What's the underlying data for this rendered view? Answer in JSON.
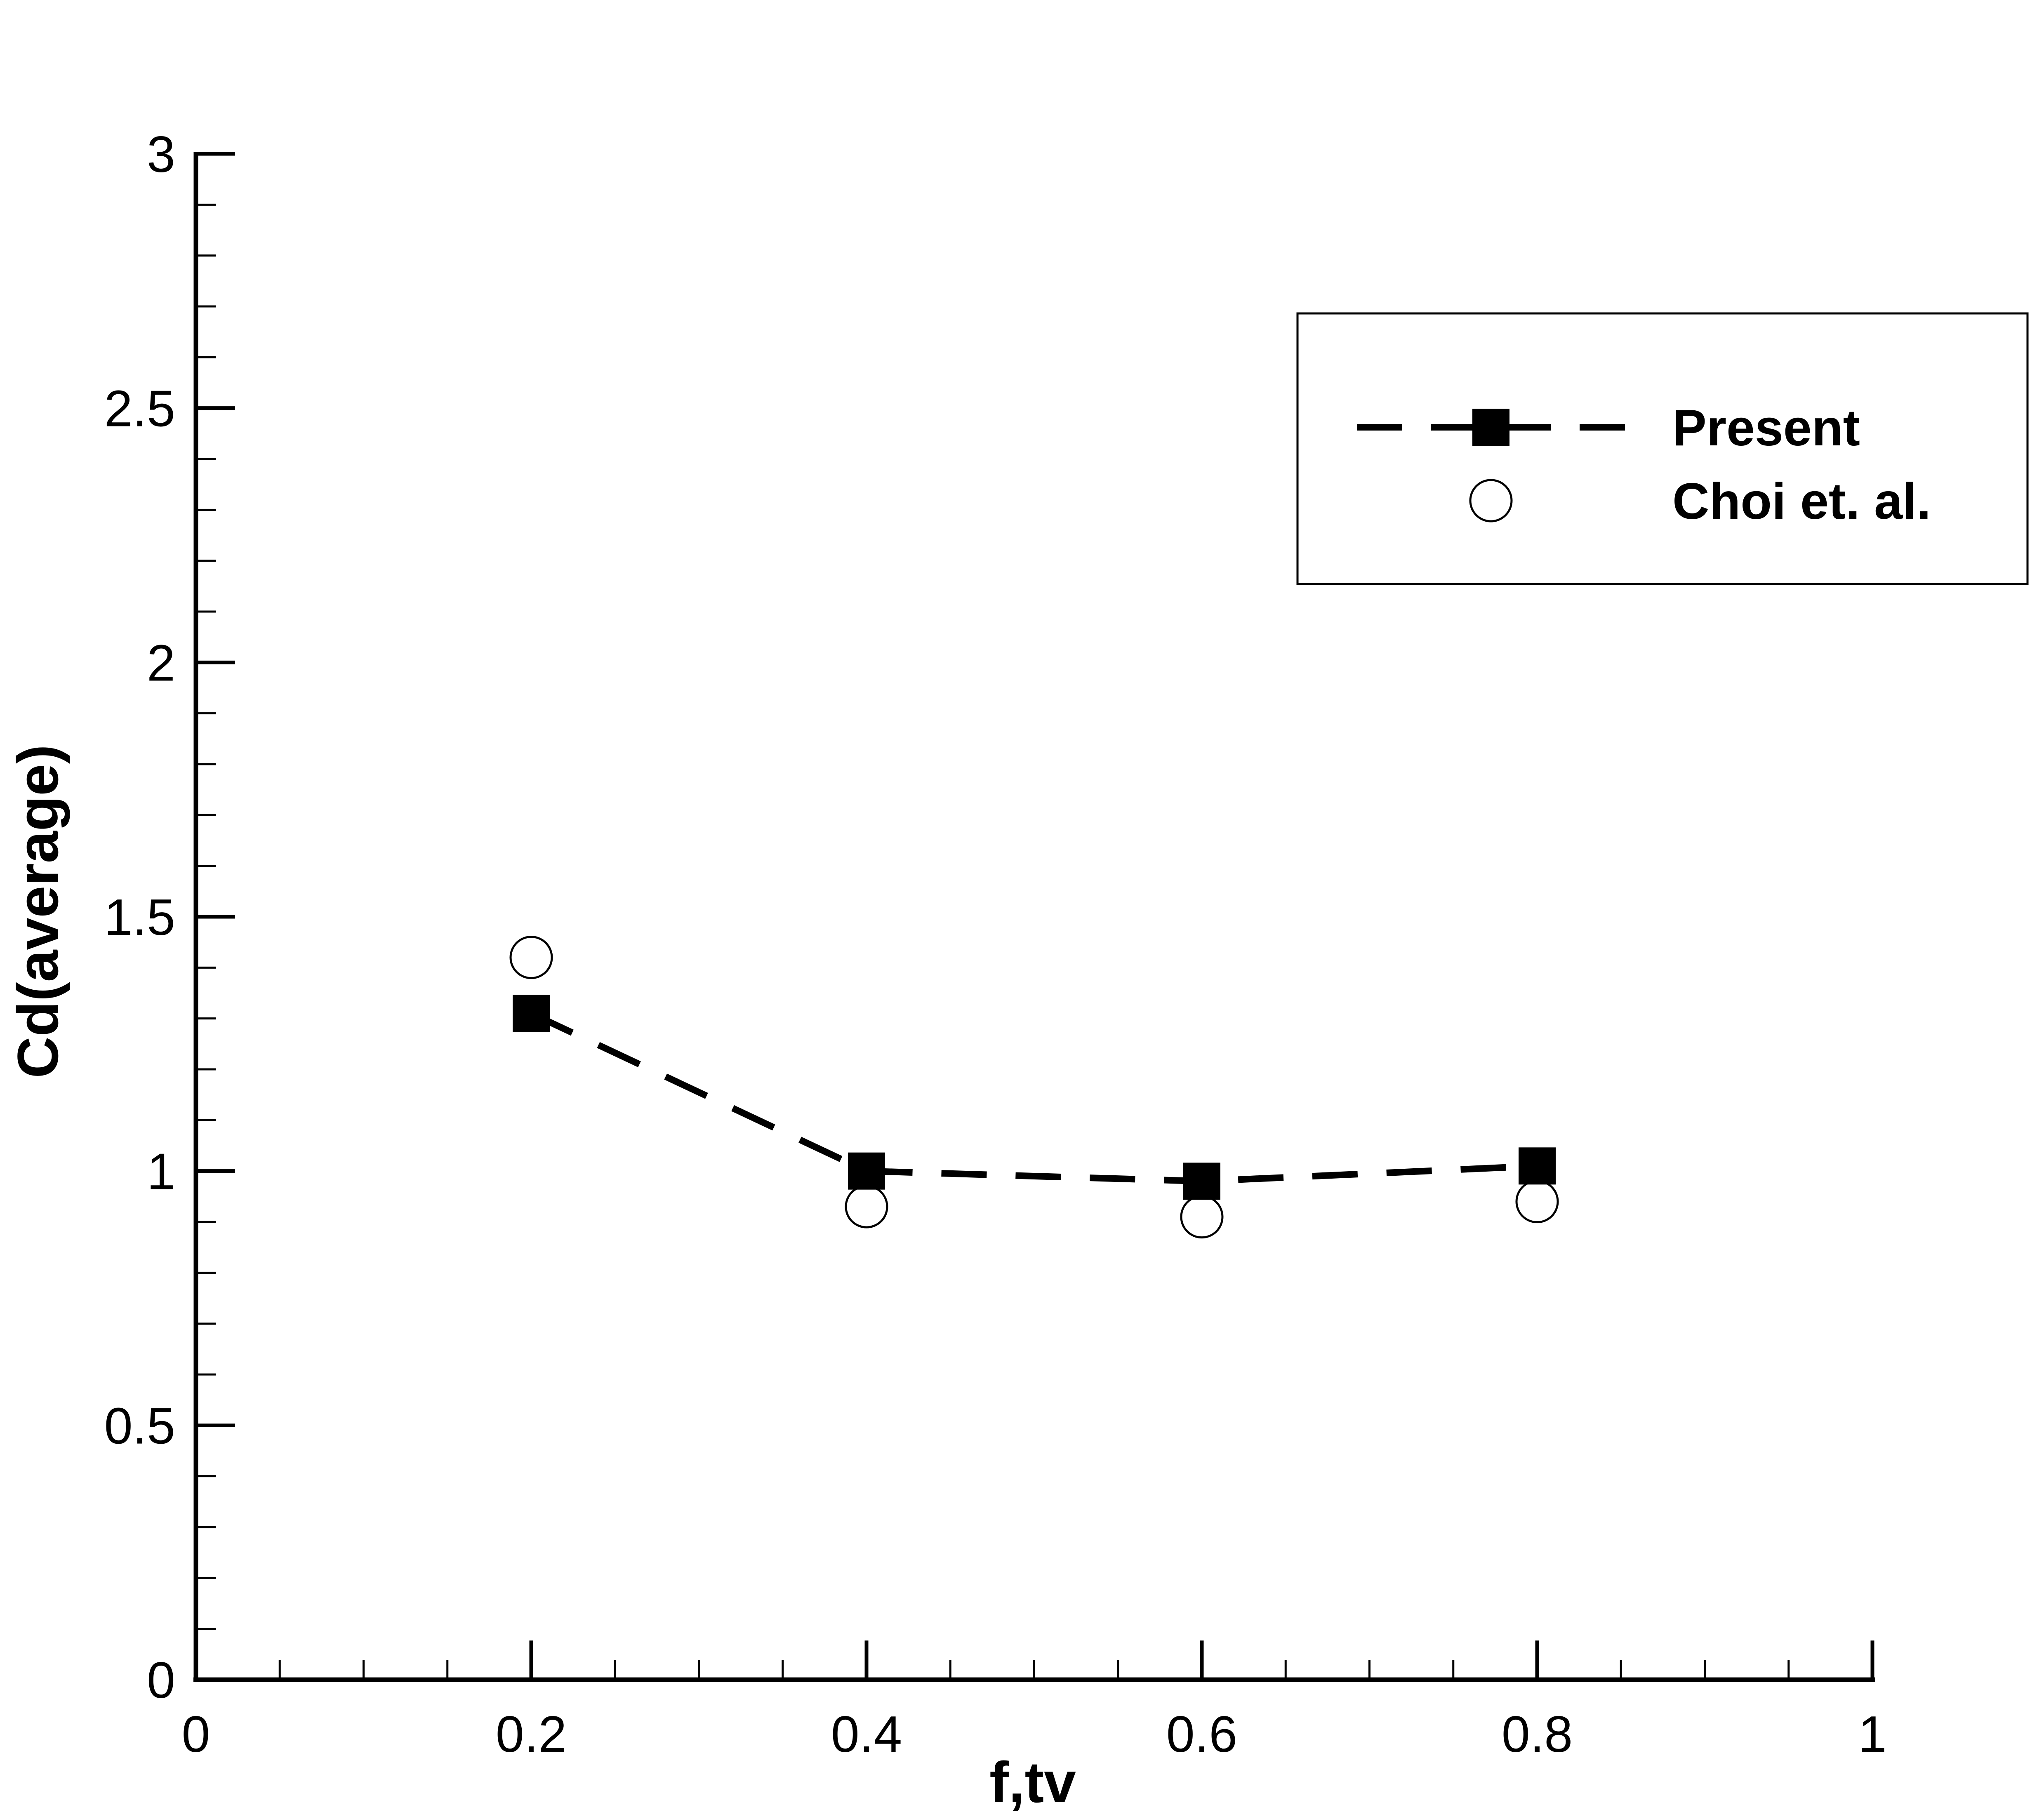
{
  "chart_data": {
    "type": "line",
    "title": "",
    "xlabel": "f,tv",
    "ylabel": "Cd(average)",
    "xlim": [
      0,
      1
    ],
    "ylim": [
      0,
      3
    ],
    "x_major_ticks": [
      0,
      0.2,
      0.4,
      0.6,
      0.8,
      1
    ],
    "x_tick_labels": [
      "0",
      "0.2",
      "0.4",
      "0.6",
      "0.8",
      "1"
    ],
    "x_minor_step": 0.05,
    "y_major_ticks": [
      0,
      0.5,
      1,
      1.5,
      2,
      2.5,
      3
    ],
    "y_tick_labels": [
      "0",
      "0.5",
      "1",
      "1.5",
      "2",
      "2.5",
      "3"
    ],
    "y_minor_step": 0.1,
    "grid": false,
    "legend_position": "top-right",
    "series": [
      {
        "name": "Present",
        "style": "dashed-line-square-marker",
        "color": "#000000",
        "x": [
          0.2,
          0.4,
          0.6,
          0.8
        ],
        "y": [
          1.31,
          1.0,
          0.98,
          1.01
        ]
      },
      {
        "name": "Choi et. al.",
        "style": "open-circle-marker",
        "color": "#000000",
        "x": [
          0.2,
          0.4,
          0.6,
          0.8
        ],
        "y": [
          1.42,
          0.93,
          0.91,
          0.94
        ]
      }
    ]
  }
}
